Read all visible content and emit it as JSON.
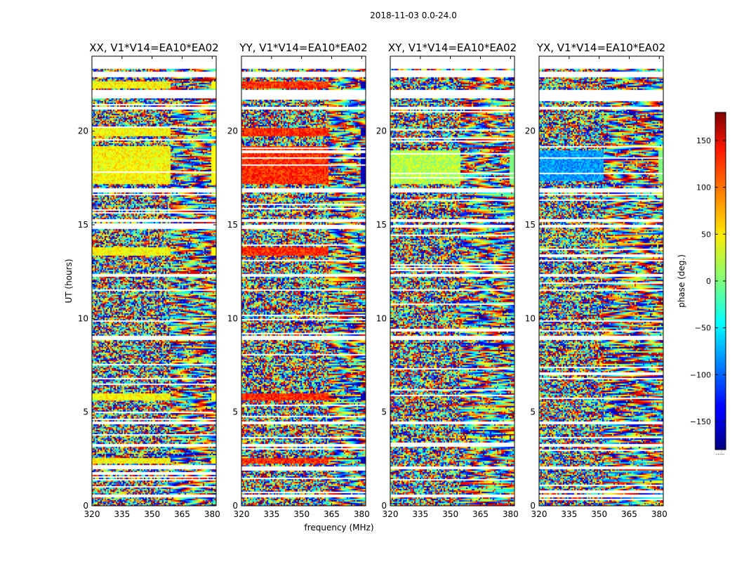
{
  "figure": {
    "suptitle": "2018-11-03 0.0-24.0"
  },
  "chart_data": {
    "type": "heatmap",
    "title": "2018-11-03 0.0-24.0",
    "xlabel": "frequency (MHz)",
    "ylabel": "UT (hours)",
    "xlim": [
      320,
      382
    ],
    "ylim": [
      0,
      24
    ],
    "xticks": [
      "320",
      "335",
      "350",
      "365",
      "380"
    ],
    "xtick_values": [
      320,
      335,
      350,
      365,
      380
    ],
    "yticks": [
      "0",
      "5",
      "10",
      "15",
      "20"
    ],
    "ytick_values": [
      0,
      5,
      10,
      15,
      20
    ],
    "colormap": "jet",
    "panels": [
      {
        "title": "XX, V1*V14=EA10*EA02",
        "bright_rows_ut": [
          [
            17.2,
            19.2
          ],
          [
            19.8,
            20.2
          ],
          [
            5.7,
            6.0
          ],
          [
            13.4,
            13.8
          ],
          [
            22.3,
            22.7
          ],
          [
            2.3,
            2.6
          ]
        ],
        "bright_phase_deg": 45,
        "bright_cutoff_mhz": 359,
        "edge_phase_deg": 45
      },
      {
        "title": "YY, V1*V14=EA10*EA02",
        "bright_rows_ut": [
          [
            17.2,
            19.2
          ],
          [
            19.8,
            20.2
          ],
          [
            5.7,
            6.0
          ],
          [
            13.4,
            13.8
          ],
          [
            22.3,
            22.7
          ],
          [
            2.3,
            2.6
          ]
        ],
        "bright_phase_deg": 120,
        "bright_cutoff_mhz": 363,
        "edge_phase_deg": -160
      },
      {
        "title": "XY, V1*V14=EA10*EA02",
        "bright_rows_ut": [
          [
            17.2,
            19.0
          ]
        ],
        "bright_phase_deg": 20,
        "bright_cutoff_mhz": 355,
        "edge_phase_deg": 0
      },
      {
        "title": "YX, V1*V14=EA10*EA02",
        "bright_rows_ut": [
          [
            17.4,
            19.0
          ]
        ],
        "bright_phase_deg": -80,
        "bright_cutoff_mhz": 352,
        "edge_phase_deg": 0
      }
    ],
    "gaps_ut": [
      [
        21.8,
        22.2
      ],
      [
        22.9,
        23.2
      ],
      [
        23.35,
        23.65
      ],
      [
        21.2,
        21.35
      ],
      [
        16.8,
        16.95
      ],
      [
        15.2,
        15.35
      ],
      [
        14.9,
        15.0
      ],
      [
        12.3,
        12.4
      ],
      [
        11.5,
        11.6
      ],
      [
        8.9,
        9.1
      ],
      [
        4.4,
        4.55
      ],
      [
        3.2,
        3.35
      ],
      [
        2.0,
        2.15
      ],
      [
        0.5,
        0.65
      ]
    ],
    "colorbar": {
      "label": "phase (deg.)",
      "ticks": [
        "150",
        "100",
        "50",
        "0",
        "−50",
        "−100",
        "−150"
      ],
      "tick_values": [
        150,
        100,
        50,
        0,
        -50,
        -100,
        -150
      ],
      "range": [
        -180,
        180
      ],
      "footer": "....."
    }
  }
}
